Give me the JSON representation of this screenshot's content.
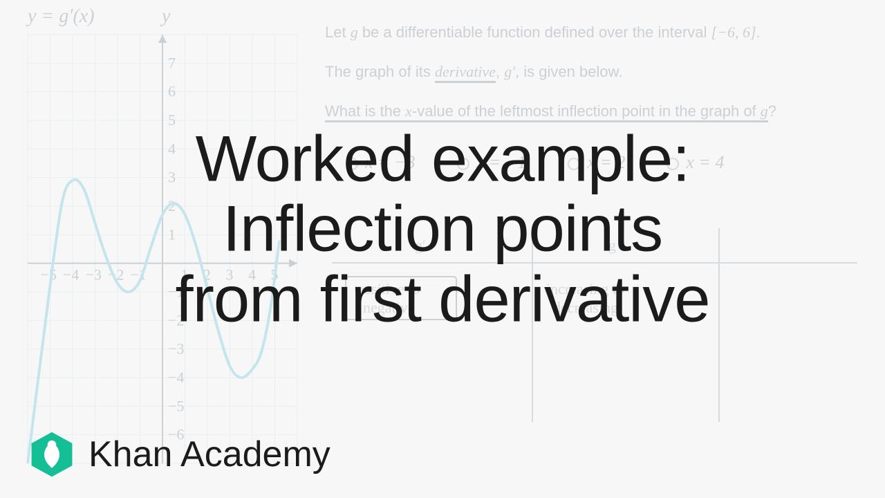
{
  "title": {
    "line1": "Worked example:",
    "line2": "Inflection points",
    "line3": "from first derivative",
    "fontsize": 94,
    "color": "#1b1b1b"
  },
  "brand": {
    "name": "Khan Academy",
    "hex_color": "#14bf96",
    "leaf_color": "#ffffff"
  },
  "graph": {
    "equation_label": "y = g′(x)",
    "y_axis_label": "y",
    "xlim": [
      -6,
      6
    ],
    "ylim": [
      -7,
      8
    ],
    "xticks": [
      -5,
      -4,
      -3,
      -2,
      -1,
      1,
      2,
      3,
      4,
      5
    ],
    "yticks": [
      -6,
      -5,
      -4,
      -3,
      -2,
      -1,
      1,
      2,
      3,
      4,
      5,
      6,
      7
    ],
    "grid_color": "#cfe3ee",
    "axis_color": "#7a8a99",
    "curve_color": "#6ac5d9",
    "background": "#f7f7f7",
    "curve_points": [
      [
        -6,
        -7
      ],
      [
        -5.2,
        -2
      ],
      [
        -4.5,
        2
      ],
      [
        -4,
        2.9
      ],
      [
        -3.5,
        2.6
      ],
      [
        -3,
        1.4
      ],
      [
        -2.5,
        0.2
      ],
      [
        -2,
        -0.7
      ],
      [
        -1.5,
        -1
      ],
      [
        -1,
        -0.6
      ],
      [
        -0.5,
        0.6
      ],
      [
        0,
        1.7
      ],
      [
        0.5,
        2.1
      ],
      [
        1,
        1.7
      ],
      [
        1.5,
        0.6
      ],
      [
        2,
        -0.9
      ],
      [
        2.5,
        -2.4
      ],
      [
        3,
        -3.6
      ],
      [
        3.5,
        -4
      ],
      [
        4,
        -3.7
      ],
      [
        4.4,
        -3.1
      ],
      [
        4.8,
        -1.6
      ],
      [
        5.2,
        0.8
      ]
    ]
  },
  "problem": {
    "line1_pre": "Let ",
    "line1_var": "g",
    "line1_mid": " be a differentiable function defined over the interval ",
    "line1_interval": "[−6, 6]",
    "line1_suffix": ".",
    "line2_pre": "The graph of its ",
    "line2_underlined": "derivative",
    "line2_mid": ", ",
    "line2_var": "g′",
    "line2_suffix": ", is given below.",
    "line3_pre": "What is the ",
    "line3_var1": "x",
    "line3_mid": "-value of the leftmost inflection point in the graph of ",
    "line3_var2": "g",
    "line3_q": "?",
    "options": [
      {
        "label": "x = −3"
      },
      {
        "label": "x = −1"
      },
      {
        "label": "x = 2"
      },
      {
        "label": "x = 4"
      }
    ]
  },
  "handwriting": {
    "col1": "g′",
    "col2": "g",
    "row1a": "positive to",
    "row1b": "negative",
    "row2a": "increasing to",
    "row2b": "decreasing"
  }
}
